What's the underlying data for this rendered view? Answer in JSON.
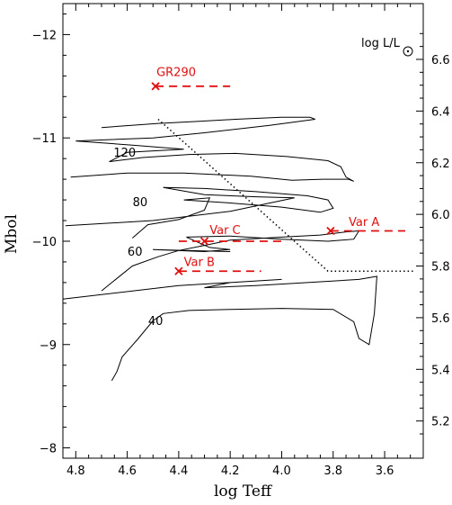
{
  "chart_data": {
    "type": "line",
    "xlabel": "log Teff",
    "ylabel": "Mbol",
    "right_label": "log L/L",
    "xlim": [
      4.85,
      3.45
    ],
    "ylim": [
      -7.9,
      -12.3
    ],
    "x_ticks": [
      4.8,
      4.6,
      4.4,
      4.2,
      4.0,
      3.8,
      3.6
    ],
    "x_tick_labels": [
      "4.8",
      "4.6",
      "4.4",
      "4.2",
      "4.0",
      "3.8",
      "3.6"
    ],
    "y_ticks": [
      -12,
      -11,
      -10,
      -9,
      -8
    ],
    "y_tick_labels": [
      "−12",
      "−11",
      "−10",
      "−9",
      "−8"
    ],
    "right_ticks": [
      5.2,
      5.4,
      5.6,
      5.8,
      6.0,
      6.2,
      6.4,
      6.6
    ],
    "right_tick_labels": [
      "5.2",
      "5.4",
      "5.6",
      "5.8",
      "6.0",
      "6.2",
      "6.4",
      "6.6"
    ],
    "colors": {
      "axis": "#000000",
      "track": "#000000",
      "stars": "#e01010"
    },
    "track_labels": [
      {
        "text": "120",
        "x": 4.61,
        "y": -10.82
      },
      {
        "text": "80",
        "x": 4.55,
        "y": -10.34
      },
      {
        "text": "60",
        "x": 4.57,
        "y": -9.86
      },
      {
        "text": "40",
        "x": 4.49,
        "y": -9.19
      }
    ],
    "tracks": [
      {
        "mass": "120",
        "points": [
          [
            4.7,
            -11.1
          ],
          [
            4.48,
            -11.14
          ],
          [
            4.32,
            -11.16
          ],
          [
            4.18,
            -11.18
          ],
          [
            4.0,
            -11.2
          ],
          [
            3.89,
            -11.2
          ],
          [
            3.87,
            -11.18
          ],
          [
            4.05,
            -11.12
          ],
          [
            4.3,
            -11.05
          ],
          [
            4.5,
            -11.0
          ],
          [
            4.7,
            -10.98
          ],
          [
            4.8,
            -10.97
          ],
          [
            4.58,
            -10.93
          ],
          [
            4.38,
            -10.89
          ],
          [
            4.6,
            -10.86
          ],
          [
            4.67,
            -10.77
          ],
          [
            4.54,
            -10.81
          ],
          [
            4.36,
            -10.84
          ],
          [
            4.18,
            -10.85
          ],
          [
            3.98,
            -10.82
          ],
          [
            3.82,
            -10.78
          ],
          [
            3.77,
            -10.72
          ],
          [
            3.75,
            -10.62
          ],
          [
            3.72,
            -10.58
          ],
          [
            3.74,
            -10.6
          ],
          [
            3.84,
            -10.6
          ],
          [
            3.96,
            -10.59
          ],
          [
            4.12,
            -10.63
          ],
          [
            4.38,
            -10.66
          ],
          [
            4.6,
            -10.66
          ],
          [
            4.82,
            -10.62
          ]
        ]
      },
      {
        "mass": "80",
        "points": [
          [
            4.58,
            -10.03
          ],
          [
            4.52,
            -10.16
          ],
          [
            4.4,
            -10.21
          ],
          [
            4.3,
            -10.3
          ],
          [
            4.28,
            -10.42
          ],
          [
            4.38,
            -10.4
          ],
          [
            4.2,
            -10.37
          ],
          [
            4.0,
            -10.33
          ],
          [
            3.85,
            -10.28
          ],
          [
            3.8,
            -10.32
          ],
          [
            3.82,
            -10.4
          ],
          [
            3.9,
            -10.44
          ],
          [
            4.1,
            -10.48
          ],
          [
            4.3,
            -10.51
          ],
          [
            4.46,
            -10.52
          ],
          [
            4.3,
            -10.45
          ],
          [
            4.1,
            -10.43
          ],
          [
            3.95,
            -10.42
          ],
          [
            4.2,
            -10.29
          ],
          [
            4.5,
            -10.2
          ],
          [
            4.84,
            -10.15
          ]
        ]
      },
      {
        "mass": "60",
        "points": [
          [
            4.7,
            -9.52
          ],
          [
            4.66,
            -9.6
          ],
          [
            4.58,
            -9.76
          ],
          [
            4.48,
            -9.85
          ],
          [
            4.4,
            -9.91
          ],
          [
            4.3,
            -9.96
          ],
          [
            4.2,
            -10.01
          ],
          [
            4.0,
            -10.04
          ],
          [
            3.85,
            -10.06
          ],
          [
            3.75,
            -10.09
          ],
          [
            3.7,
            -10.1
          ],
          [
            3.72,
            -10.02
          ],
          [
            3.82,
            -10.0
          ],
          [
            4.0,
            -10.02
          ],
          [
            4.2,
            -10.05
          ],
          [
            4.37,
            -10.04
          ],
          [
            4.28,
            -9.94
          ],
          [
            4.2,
            -9.92
          ],
          [
            4.3,
            -9.9
          ],
          [
            4.5,
            -9.92
          ],
          [
            4.2,
            -9.9
          ]
        ]
      },
      {
        "mass": "40",
        "points": [
          [
            4.66,
            -8.65
          ],
          [
            4.64,
            -8.74
          ],
          [
            4.62,
            -8.88
          ],
          [
            4.56,
            -9.05
          ],
          [
            4.5,
            -9.23
          ],
          [
            4.46,
            -9.3
          ],
          [
            4.36,
            -9.33
          ],
          [
            4.2,
            -9.34
          ],
          [
            4.0,
            -9.35
          ],
          [
            3.8,
            -9.34
          ],
          [
            3.72,
            -9.22
          ],
          [
            3.7,
            -9.06
          ],
          [
            3.66,
            -9.0
          ],
          [
            3.64,
            -9.3
          ],
          [
            3.63,
            -9.66
          ],
          [
            3.7,
            -9.63
          ],
          [
            3.9,
            -9.6
          ],
          [
            4.1,
            -9.57
          ],
          [
            4.3,
            -9.55
          ],
          [
            4.2,
            -9.6
          ],
          [
            4.0,
            -9.63
          ],
          [
            4.4,
            -9.57
          ],
          [
            4.85,
            -9.44
          ]
        ]
      }
    ],
    "limit_line": [
      [
        4.48,
        -11.18
      ],
      [
        3.82,
        -9.71
      ],
      [
        3.49,
        -9.71
      ]
    ],
    "stars": [
      {
        "name": "GR290",
        "x": 4.49,
        "y": -11.5,
        "range": [
          4.49,
          4.2
        ],
        "label_x": 4.41,
        "label_y": -11.6
      },
      {
        "name": "Var A",
        "x": 3.81,
        "y": -10.1,
        "range": [
          3.81,
          3.52
        ],
        "label_x": 3.68,
        "label_y": -10.15
      },
      {
        "name": "Var C",
        "x": 4.3,
        "y": -10.0,
        "range": [
          4.4,
          4.0
        ],
        "label_x": 4.22,
        "label_y": -10.07
      },
      {
        "name": "Var B",
        "x": 4.4,
        "y": -9.71,
        "range": [
          4.4,
          4.08
        ],
        "label_x": 4.32,
        "label_y": -9.76
      }
    ]
  }
}
